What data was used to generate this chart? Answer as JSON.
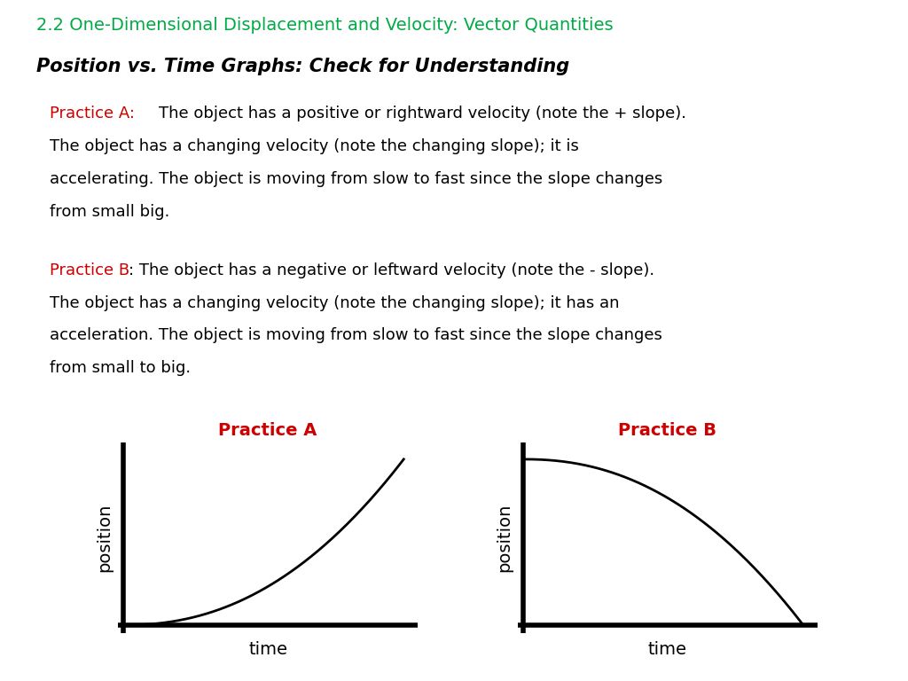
{
  "title": "2.2 One-Dimensional Displacement and Velocity: Vector Quantities",
  "title_color": "#00aa44",
  "subtitle": "Position vs. Time Graphs: Check for Understanding",
  "practice_a_label": "Practice A:",
  "practice_a_label_color": "#cc0000",
  "practice_a_body": " The object has a positive or rightward velocity (note the + slope).\nThe object has a changing velocity (note the changing slope); it is\naccelerating. The object is moving from slow to fast since the slope changes\nfrom small big.",
  "practice_b_label": "Practice B",
  "practice_b_label_color": "#cc0000",
  "practice_b_body": ": The object has a negative or leftward velocity (note the - slope).\nThe object has a changing velocity (note the changing slope); it has an\nacceleration. The object is moving from slow to fast since the slope changes\nfrom small to big.",
  "graph_a_title": "Practice A",
  "graph_b_title": "Practice B",
  "graph_title_color": "#cc0000",
  "curve_color": "#000000",
  "background_color": "#ffffff",
  "text_color": "#000000",
  "title_fontsize": 14,
  "subtitle_fontsize": 15,
  "body_fontsize": 13,
  "graph_title_fontsize": 14,
  "axis_label_fontsize": 14
}
